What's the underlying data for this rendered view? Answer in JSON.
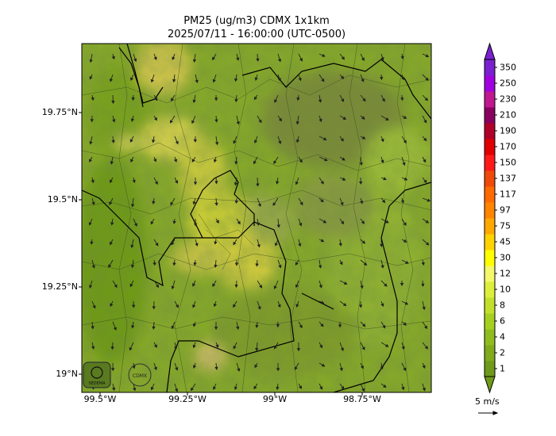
{
  "title": "PM25 (ug/m3) CDMX 1x1km",
  "subtitle": "2025/07/11 - 16:00:00 (UTC-0500)",
  "axes": {
    "lat_ticks": [
      "19.75°N",
      "19.5°N",
      "19.25°N",
      "19°N"
    ],
    "lon_ticks": [
      "99.5°W",
      "99.25°W",
      "99°W",
      "98.75°W"
    ]
  },
  "colorbar": {
    "labels": [
      "1",
      "2",
      "4",
      "6",
      "8",
      "10",
      "12",
      "30",
      "45",
      "75",
      "97",
      "117",
      "137",
      "150",
      "170",
      "190",
      "210",
      "230",
      "250",
      "350"
    ],
    "colors": [
      "#6f9a1a",
      "#7fab1c",
      "#8fbd1e",
      "#a6d01f",
      "#c2e02a",
      "#dcef3c",
      "#f4f86a",
      "#ffff00",
      "#ffd200",
      "#ffa800",
      "#ff8400",
      "#ff6a00",
      "#f04a0a",
      "#ff1a1a",
      "#e00000",
      "#b00028",
      "#8a0060",
      "#c01890",
      "#a000e0",
      "#7a20d0"
    ]
  },
  "wind_key": {
    "label": "5 m/s"
  },
  "logos": [
    "SEDEMA",
    "CDMX"
  ]
}
